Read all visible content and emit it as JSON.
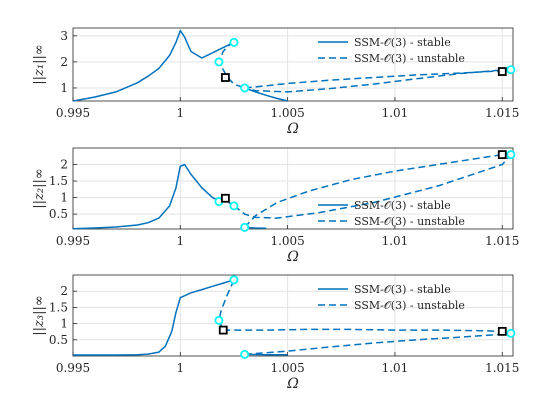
{
  "chart_data": [
    {
      "type": "line",
      "xlabel": "Ω",
      "ylabel": "||z₁||∞",
      "xlim": [
        0.995,
        1.0155
      ],
      "ylim": [
        0.5,
        3.3
      ],
      "xticks": [
        0.995,
        1,
        1.005,
        1.01,
        1.015
      ],
      "xtick_labels": [
        "0.995",
        "1",
        "1.005",
        "1.01",
        "1.015"
      ],
      "yticks": [
        1,
        2,
        3
      ],
      "ytick_labels": [
        "1",
        "2",
        "3"
      ],
      "grid": true,
      "legend": {
        "placement": "top-right",
        "entries": [
          "SSM-𝒪(3) - stable",
          "SSM-𝒪(3) - unstable"
        ]
      },
      "series": [
        {
          "name": "SSM-𝒪(3) - stable",
          "style": "solid",
          "x": [
            0.995,
            0.996,
            0.997,
            0.998,
            0.9985,
            0.999,
            0.9995,
            0.9998,
            1.0,
            1.0002,
            1.0005,
            1.001,
            1.0015,
            1.002,
            1.0025
          ],
          "y": [
            0.5,
            0.65,
            0.85,
            1.2,
            1.45,
            1.75,
            2.25,
            2.75,
            3.2,
            2.95,
            2.4,
            2.15,
            2.35,
            2.55,
            2.75
          ]
        },
        {
          "name": "SSM-𝒪(3) - unstable",
          "style": "dashed",
          "x": [
            1.0025,
            1.0022,
            1.002,
            1.0018,
            1.002,
            1.0022,
            1.0025,
            1.003
          ],
          "y": [
            2.75,
            2.6,
            2.4,
            2.0,
            1.7,
            1.4,
            1.15,
            1.0
          ]
        },
        {
          "name": "SSM-𝒪(3) - stable",
          "style": "solid",
          "x": [
            1.003,
            1.0035,
            1.004,
            1.0045,
            1.005
          ],
          "y": [
            1.0,
            0.85,
            0.72,
            0.6,
            0.5
          ]
        },
        {
          "name": "SSM-𝒪(3) - unstable",
          "style": "dashed",
          "x": [
            1.003,
            1.005,
            1.007,
            1.009,
            1.011,
            1.013,
            1.015,
            1.0154
          ],
          "y": [
            1.0,
            1.17,
            1.3,
            1.4,
            1.5,
            1.57,
            1.66,
            1.7
          ]
        },
        {
          "name": "SSM-𝒪(3) - unstable",
          "style": "dashed",
          "x": [
            1.0154,
            1.015,
            1.013,
            1.011,
            1.009,
            1.007,
            1.005,
            1.0035,
            1.003
          ],
          "y": [
            1.7,
            1.69,
            1.55,
            1.35,
            1.15,
            0.98,
            0.85,
            0.9,
            1.0
          ]
        }
      ],
      "markers": {
        "cyan_circles": [
          {
            "x": 1.0025,
            "y": 2.75
          },
          {
            "x": 1.0018,
            "y": 2.0
          },
          {
            "x": 1.003,
            "y": 1.0
          },
          {
            "x": 1.0154,
            "y": 1.7
          }
        ],
        "black_squares": [
          {
            "x": 1.0021,
            "y": 1.4
          },
          {
            "x": 1.015,
            "y": 1.63
          }
        ]
      }
    },
    {
      "type": "line",
      "xlabel": "Ω",
      "ylabel": "||z₂||∞",
      "xlim": [
        0.995,
        1.0155
      ],
      "ylim": [
        0.05,
        2.5
      ],
      "xticks": [
        0.995,
        1,
        1.005,
        1.01,
        1.015
      ],
      "xtick_labels": [
        "0.995",
        "1",
        "1.005",
        "1.01",
        "1.015"
      ],
      "yticks": [
        0.5,
        1,
        1.5,
        2
      ],
      "ytick_labels": [
        "0.5",
        "1",
        "1.5",
        "2"
      ],
      "grid": true,
      "legend": {
        "placement": "bottom-right",
        "entries": [
          "SSM-𝒪(3) - stable",
          "SSM-𝒪(3) - unstable"
        ]
      },
      "series": [
        {
          "name": "SSM-𝒪(3) - stable",
          "style": "solid",
          "x": [
            0.995,
            0.996,
            0.997,
            0.998,
            0.9985,
            0.999,
            0.9995,
            0.9998,
            1.0,
            1.0002,
            1.0005,
            1.001,
            1.0015,
            1.0018
          ],
          "y": [
            0.06,
            0.08,
            0.11,
            0.17,
            0.24,
            0.38,
            0.75,
            1.3,
            1.95,
            2.0,
            1.7,
            1.3,
            1.0,
            0.9
          ]
        },
        {
          "name": "SSM-𝒪(3) - stable",
          "style": "solid",
          "x": [
            1.0018,
            1.002,
            1.0022,
            1.0025
          ],
          "y": [
            0.9,
            0.98,
            0.88,
            0.75
          ]
        },
        {
          "name": "SSM-𝒪(3) - unstable",
          "style": "dashed",
          "x": [
            1.0025,
            1.0027,
            1.003,
            1.0035,
            1.0045,
            1.0065,
            1.009,
            1.012,
            1.015,
            1.0154
          ],
          "y": [
            0.75,
            0.65,
            0.5,
            0.4,
            0.38,
            0.55,
            0.85,
            1.35,
            2.0,
            2.3
          ]
        },
        {
          "name": "SSM-𝒪(3) - unstable",
          "style": "dashed",
          "x": [
            1.003,
            1.0035,
            1.0045,
            1.006,
            1.008,
            1.01,
            1.012,
            1.014,
            1.015
          ],
          "y": [
            0.1,
            0.45,
            0.85,
            1.2,
            1.55,
            1.8,
            2.0,
            2.2,
            2.3
          ]
        },
        {
          "name": "SSM-𝒪(3) - stable",
          "style": "solid",
          "x": [
            1.003,
            1.0035,
            1.004
          ],
          "y": [
            0.1,
            0.08,
            0.07
          ]
        }
      ],
      "markers": {
        "cyan_circles": [
          {
            "x": 1.0018,
            "y": 0.88
          },
          {
            "x": 1.0025,
            "y": 0.75
          },
          {
            "x": 1.003,
            "y": 0.1
          },
          {
            "x": 1.0154,
            "y": 2.3
          }
        ],
        "black_squares": [
          {
            "x": 1.0021,
            "y": 0.98
          },
          {
            "x": 1.015,
            "y": 2.3
          }
        ]
      }
    },
    {
      "type": "line",
      "xlabel": "Ω",
      "ylabel": "||z₃||∞",
      "xlim": [
        0.995,
        1.0155
      ],
      "ylim": [
        0.0,
        2.5
      ],
      "xticks": [
        0.995,
        1,
        1.005,
        1.01,
        1.015
      ],
      "xtick_labels": [
        "0.995",
        "1",
        "1.005",
        "1.01",
        "1.015"
      ],
      "yticks": [
        0.5,
        1,
        1.5,
        2
      ],
      "ytick_labels": [
        "0.5",
        "1",
        "1.5",
        "2"
      ],
      "grid": true,
      "legend": {
        "placement": "top-right",
        "entries": [
          "SSM-𝒪(3) - stable",
          "SSM-𝒪(3) - unstable"
        ]
      },
      "series": [
        {
          "name": "SSM-𝒪(3) - stable",
          "style": "solid",
          "x": [
            0.995,
            0.997,
            0.998,
            0.9985,
            0.999,
            0.9993,
            0.9996,
            0.9998,
            1.0,
            1.0005,
            1.001,
            1.0015,
            1.002,
            1.0025
          ],
          "y": [
            0.03,
            0.03,
            0.04,
            0.06,
            0.12,
            0.3,
            0.75,
            1.35,
            1.8,
            1.95,
            2.05,
            2.15,
            2.25,
            2.35
          ]
        },
        {
          "name": "SSM-𝒪(3) - unstable",
          "style": "dashed",
          "x": [
            1.0025,
            1.0022,
            1.0019,
            1.0018,
            1.002
          ],
          "y": [
            2.35,
            1.9,
            1.4,
            1.1,
            0.8
          ]
        },
        {
          "name": "SSM-𝒪(3) - unstable",
          "style": "dashed",
          "x": [
            1.002,
            1.004,
            1.006,
            1.008,
            1.01,
            1.012,
            1.014,
            1.015,
            1.0154
          ],
          "y": [
            0.8,
            0.8,
            0.82,
            0.82,
            0.8,
            0.8,
            0.78,
            0.76,
            0.7
          ]
        },
        {
          "name": "SSM-𝒪(3) - unstable",
          "style": "dashed",
          "x": [
            1.003,
            1.005,
            1.007,
            1.009,
            1.011,
            1.013,
            1.015,
            1.0154
          ],
          "y": [
            0.05,
            0.15,
            0.28,
            0.4,
            0.5,
            0.58,
            0.67,
            0.7
          ]
        },
        {
          "name": "SSM-𝒪(3) - stable",
          "style": "solid",
          "x": [
            1.003,
            1.004,
            1.005
          ],
          "y": [
            0.05,
            0.04,
            0.04
          ]
        }
      ],
      "markers": {
        "cyan_circles": [
          {
            "x": 1.0025,
            "y": 2.35
          },
          {
            "x": 1.0018,
            "y": 1.1
          },
          {
            "x": 1.003,
            "y": 0.05
          },
          {
            "x": 1.0154,
            "y": 0.7
          }
        ],
        "black_squares": [
          {
            "x": 1.002,
            "y": 0.8
          },
          {
            "x": 1.015,
            "y": 0.76
          }
        ]
      }
    }
  ]
}
